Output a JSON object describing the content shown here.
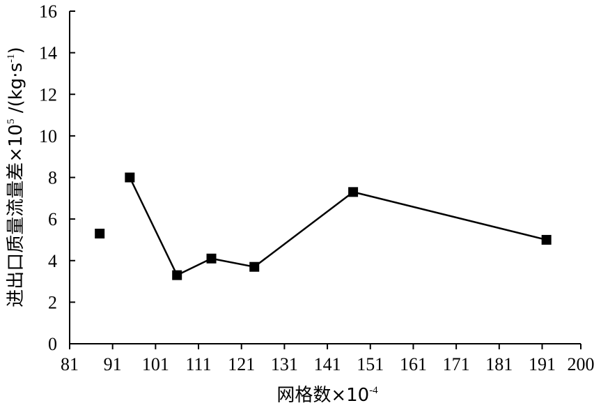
{
  "chart_data": {
    "type": "line",
    "title": "",
    "xlabel": {
      "prefix": "网格数×10",
      "sup": "-4"
    },
    "ylabel": {
      "prefix": "进出口质量流量差×10",
      "sup1": "5",
      "mid": " /(kg·s",
      "sup2": "-1",
      "suffix": ")"
    },
    "x_ticks": [
      "81",
      "91",
      "101",
      "111",
      "121",
      "131",
      "141",
      "151",
      "161",
      "171",
      "181",
      "191",
      "200"
    ],
    "x_tick_values": [
      81,
      91,
      101,
      111,
      121,
      131,
      141,
      151,
      161,
      171,
      181,
      191,
      200
    ],
    "y_ticks": [
      "0",
      "2",
      "4",
      "6",
      "8",
      "10",
      "12",
      "14",
      "16"
    ],
    "y_tick_values": [
      0,
      2,
      4,
      6,
      8,
      10,
      12,
      14,
      16
    ],
    "xlim": [
      81,
      200
    ],
    "ylim": [
      0,
      16
    ],
    "grid": false,
    "series": [
      {
        "marker": "square",
        "color": "#000000",
        "points": [
          {
            "x": 88,
            "y": 5.3
          },
          {
            "x": 95,
            "y": 8.0
          },
          {
            "x": 106,
            "y": 3.3
          },
          {
            "x": 114,
            "y": 4.1
          },
          {
            "x": 124,
            "y": 3.7
          },
          {
            "x": 147,
            "y": 7.3
          },
          {
            "x": 192,
            "y": 5.0
          }
        ],
        "connect": [
          [
            1,
            2
          ],
          [
            2,
            3
          ],
          [
            3,
            4
          ],
          [
            4,
            5
          ],
          [
            5,
            6
          ]
        ]
      }
    ]
  }
}
